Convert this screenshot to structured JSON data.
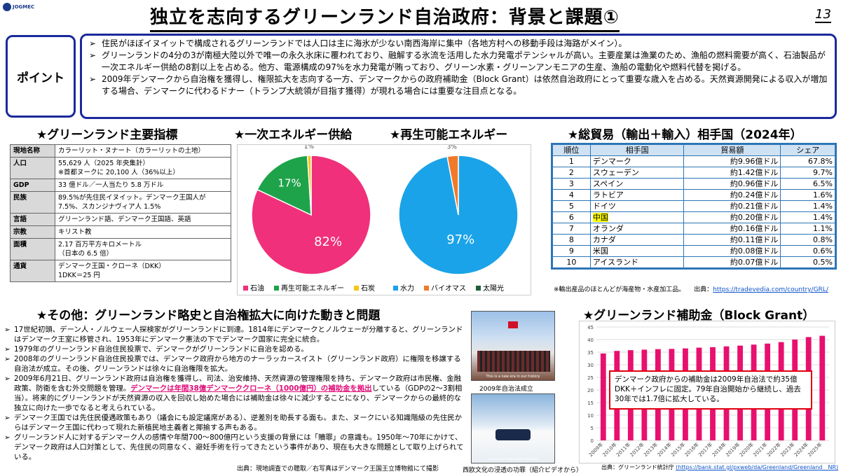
{
  "logo_text": "JOGMEC",
  "title": "独立を志向するグリーンランド自治政府：背景と課題①",
  "page_number": "13",
  "point": {
    "label": "ポイント",
    "items": [
      "住民がほぼイヌイットで構成されるグリーンランドでは人口は主に海氷が少ない南西海岸に集中（各地方村への移動手段は海路がメイン）。",
      "グリーンランドの4分の3が南極大陸以外で唯一の永久氷床に覆われており、融解する氷流を活用した水力発電ポテンシャルが高い。主要産業は漁業のため、漁船の燃料需要が高く、石油製品が一次エネルギー供給の8割以上を占める。他方、電源構成の97%を水力発電が賄っており、グリーン水素・グリーンアンモニアの生産、漁船の電動化や燃料代替を掲げる。",
      "2009年デンマークから自治権を獲得し、権限拡大を志向する一方、デンマークからの政府補助金（Block Grant）は依然自治政府にとって重要な歳入を占める。天然資源開発による収入が増加する場合、デンマークに代わるドナー（トランプ大統領が目指す獲得）が現れる場合には重要な注目点となる。"
    ]
  },
  "indicators": {
    "title": "★グリーンランド主要指標",
    "rows": [
      {
        "k": "現地名称",
        "v": "カラーリット・ヌナート（カラーリットの土地）"
      },
      {
        "k": "人口",
        "v": "55,629 人（2025 年央集計）\n※首都ヌークに 20,100 人（36%以上）"
      },
      {
        "k": "GDP",
        "v": "33 億ドル／一人当たり 5.8 万ドル"
      },
      {
        "k": "民族",
        "v": "89.5%が先住民イヌイット。デンマーク王国人が 7.5%、スカンジナヴィア人 1.5%"
      },
      {
        "k": "言語",
        "v": "グリーンランド語、デンマーク王国語、英語"
      },
      {
        "k": "宗教",
        "v": "キリスト教"
      },
      {
        "k": "面積",
        "v": "2.17 百万平方キロメートル\n（日本の 6.5 倍）"
      },
      {
        "k": "通貨",
        "v": "デンマーク王国・クローネ（DKK）\n1DKK＝25 円"
      }
    ]
  },
  "energy_title": "★一次エネルギー供給",
  "renew_title": "★再生可能エネルギー",
  "trade": {
    "title": "★総貿易（輸出＋輸入）相手国（2024年）",
    "headers": [
      "順位",
      "相手国",
      "貿易額",
      "シェア"
    ],
    "rows": [
      [
        "1",
        "デンマーク",
        "約9.96億ドル",
        "67.8%"
      ],
      [
        "2",
        "スウェーデン",
        "約1.42億ドル",
        "9.7%"
      ],
      [
        "3",
        "スペイン",
        "約0.96億ドル",
        "6.5%"
      ],
      [
        "4",
        "ラトビア",
        "約0.24億ドル",
        "1.6%"
      ],
      [
        "5",
        "ドイツ",
        "約0.21億ドル",
        "1.4%"
      ],
      [
        "6",
        "中国",
        "約0.20億ドル",
        "1.4%"
      ],
      [
        "7",
        "オランダ",
        "約0.16億ドル",
        "1.1%"
      ],
      [
        "8",
        "カナダ",
        "約0.11億ドル",
        "0.8%"
      ],
      [
        "9",
        "米国",
        "約0.08億ドル",
        "0.6%"
      ],
      [
        "10",
        "アイスランド",
        "約0.07億ドル",
        "0.5%"
      ]
    ],
    "note": "※輸出産品のほとんどが海産物・水産加工品。",
    "source_label": "出典：",
    "source_url": "https://tradevedia.com/country/GRL/"
  },
  "other": {
    "title": "★その他：グリーンランド略史と自治権拡大に向けた動きと問題",
    "items": [
      {
        "t": "17世紀初頭、デーン人・ノルウェー人探検家がグリーンランドに到達。1814年にデンマークとノルウェーが分離すると、グリーンランドはデンマーク王室に移管され、1953年にデンマーク憲法の下でデンマーク国家に完全に統合。"
      },
      {
        "t": "1979年のグリーンランド自治住民投票で、デンマークがグリーンランドに自治を認める。"
      },
      {
        "t": "2008年のグリーンランド自治住民投票では、デンマーク政府から地方のナーラッカースイスト（グリーンランド政府）に権限を移譲する自治法が成立。その後、グリーンランドは徐々に自治権限を拡大。"
      },
      {
        "t": "2009年6月21日、グリーンランド政府は自治権を獲得し、司法、治安維持、天然資源の管理権限を持ち、デンマーク政府は市民権、金融政策、防衛を含む外交問題を管理。",
        "h": "デンマークは年間38億デンマーククローネ（1000億円）の補助金を拠出",
        "t2": "している（GDPの2〜3割相当）。将来的にグリーンランドが天然資源の収入を回収し始めた場合には補助金は徐々に減少することになり、デンマークからの最終的な独立に向けた一歩でなると考えられている。"
      },
      {
        "t": "デンマーク王国では先住民優遇政策もあり（議会にも設定議席がある）、逆差別を助長する面も。また、ヌークにいる知識階級の先住民からはデンマーク王国に代わって現れた新植民地主義者と揶揄する声もある。"
      },
      {
        "t": "グリーンランド人に対するデンマーク人の感情や年間700～800億円という支援の背景には「贖罪」の意識も。1950年～70年にかけて、デンマーク政府は人口対策として、先住民の同意なく、避妊手術を行ってきたという事件があり、現在も大きな問題として取り上げられている。"
      }
    ],
    "source": "出典：現地調査での聴取／右写真はデンマーク王国王立博物館にて撮影"
  },
  "photo1_caption": "2009年自治法成立",
  "photo1_overlay": "This is a new era in our history",
  "photo2_overlay": "A journey into modernization",
  "photo2_caption": "西欧文化の浸透の功罪（紹介ビデオから）",
  "block_grant": {
    "title": "★グリーンランド補助金（Block Grant）",
    "callout": "デンマーク政府からの補助金は2009年自治法で約35億DKK＋インフレに固定。79年自治開始から継続し、過去30年では1.7倍に拡大している。",
    "source_label": "出典：グリーンランド統計庁",
    "source_url": "(https://bank.stat.gl/pxweb/da/Greenland/Greenland__NR)"
  },
  "chart_data": [
    {
      "type": "pie",
      "title": "★一次エネルギー供給",
      "labels": [
        "石油",
        "再生可能エネルギー",
        "石炭"
      ],
      "values": [
        82,
        17,
        1
      ],
      "value_labels": [
        "82%",
        "17%",
        "1%"
      ],
      "colors": [
        "#f0307a",
        "#1fa34a",
        "#f5c518"
      ]
    },
    {
      "type": "pie",
      "title": "★再生可能エネルギー",
      "labels": [
        "水力",
        "バイオマス",
        "太陽光"
      ],
      "values": [
        97,
        3,
        0
      ],
      "value_labels": [
        "97%",
        "3%",
        ""
      ],
      "colors": [
        "#1aa3e8",
        "#f07a2a",
        "#1f5e3a"
      ]
    },
    {
      "type": "bar",
      "title": "★グリーンランド補助金（Block Grant）",
      "categories": [
        "2009年",
        "2010年",
        "2011年",
        "2012年",
        "2013年",
        "2014年",
        "2015年",
        "2016年",
        "2017年",
        "2018年",
        "2019年",
        "2020年",
        "2021年",
        "2022年",
        "2023年",
        "2024年",
        "2025年"
      ],
      "values": [
        34.5,
        35.5,
        35.8,
        36.0,
        36.2,
        36.3,
        36.5,
        36.8,
        37.0,
        37.3,
        37.6,
        38.0,
        38.4,
        39.0,
        40.0,
        41.0,
        41.5
      ],
      "ylim": [
        0,
        45
      ],
      "yticks": [
        0,
        5,
        10,
        15,
        20,
        25,
        30,
        35,
        40,
        45
      ],
      "color": "#e8106f",
      "grid": true
    }
  ]
}
